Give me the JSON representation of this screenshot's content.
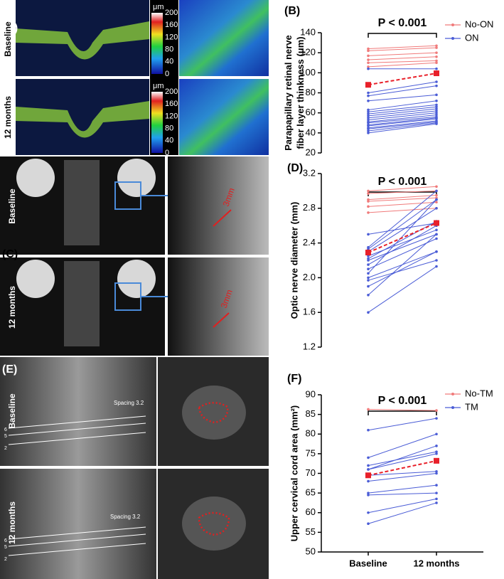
{
  "panel_a": {
    "label": "(A)",
    "rows": [
      "Baseline",
      "12 months"
    ],
    "colorbar_unit": "μm",
    "colorbar_ticks": [
      "200",
      "160",
      "120",
      "80",
      "40",
      "0"
    ]
  },
  "panel_c": {
    "label": "(C)",
    "rows": [
      "Baseline",
      "12 months"
    ],
    "measure": "3mm"
  },
  "panel_e": {
    "label": "(E)",
    "rows": [
      "Baseline",
      "12 months"
    ],
    "spacing": [
      "Spacing  3.2",
      "Spacing  3.2"
    ],
    "ruler_marks": [
      "6",
      "5",
      "2"
    ]
  },
  "chart_data": [
    {
      "type": "line",
      "label": "(B)",
      "annotation": "P < 0.001",
      "ylabel": [
        "Parapapillary retinal nerve",
        "fiber layer  thinkness (μm)"
      ],
      "ylim": [
        20,
        140
      ],
      "yticks": [
        20,
        40,
        60,
        80,
        100,
        120,
        140
      ],
      "series": [
        {
          "name": "No-ON",
          "color": "#f07a7a",
          "lines": [
            [
              124,
              127
            ],
            [
              122,
              125
            ],
            [
              117,
              120
            ],
            [
              113,
              116
            ],
            [
              110,
              112
            ],
            [
              106,
              110
            ]
          ]
        },
        {
          "name": "ON",
          "color": "#4a5cd6",
          "lines": [
            [
              104,
              104
            ],
            [
              80,
              91
            ],
            [
              77,
              87
            ],
            [
              72,
              78
            ],
            [
              63,
              72
            ],
            [
              61,
              68
            ],
            [
              59,
              66
            ],
            [
              57,
              64
            ],
            [
              55,
              62
            ],
            [
              53,
              60
            ],
            [
              51,
              58
            ],
            [
              50,
              56
            ],
            [
              48,
              55
            ],
            [
              47,
              54
            ],
            [
              45,
              52
            ],
            [
              44,
              51
            ],
            [
              42,
              50
            ],
            [
              40,
              49
            ]
          ]
        }
      ],
      "mean": {
        "values": [
          88,
          99.5
        ],
        "color": "#e8202a"
      }
    },
    {
      "type": "line",
      "label": "(D)",
      "annotation": "P < 0.001",
      "ylabel": [
        "Optic nerve diameter (mm)"
      ],
      "ylim": [
        1.2,
        3.2
      ],
      "yticks": [
        1.2,
        1.6,
        {
          "value": 2,
          "label": "2.0"
        },
        2.4,
        2.8,
        3.2
      ],
      "series": [
        {
          "color": "#f07a7a",
          "lines": [
            [
              3.0,
              3.05
            ],
            [
              2.97,
              3.0
            ],
            [
              2.9,
              2.95
            ],
            [
              2.88,
              2.92
            ],
            [
              2.82,
              2.87
            ],
            [
              2.75,
              2.8
            ]
          ]
        },
        {
          "color": "#4a5cd6",
          "lines": [
            [
              2.5,
              2.63
            ],
            [
              2.35,
              3.0
            ],
            [
              2.33,
              2.9
            ],
            [
              2.3,
              2.8
            ],
            [
              2.25,
              2.55
            ],
            [
              2.22,
              2.65
            ],
            [
              2.2,
              2.5
            ],
            [
              2.15,
              2.6
            ],
            [
              2.1,
              2.45
            ],
            [
              2.05,
              2.9
            ],
            [
              2.0,
              2.3
            ],
            [
              1.97,
              2.2
            ],
            [
              1.9,
              2.3
            ],
            [
              1.8,
              2.5
            ],
            [
              1.6,
              2.13
            ]
          ]
        }
      ],
      "mean": {
        "values": [
          2.29,
          2.63
        ],
        "color": "#e8202a"
      }
    },
    {
      "type": "line",
      "label": "(F)",
      "annotation": "P < 0.001",
      "ylabel": [
        "Upper cervical cord area (mm²)"
      ],
      "categories": [
        "Baseline",
        "12 months"
      ],
      "ylim": [
        50,
        90
      ],
      "yticks": [
        50,
        55,
        60,
        65,
        70,
        75,
        80,
        85,
        90
      ],
      "series": [
        {
          "name": "No-TM",
          "color": "#f07a7a",
          "lines": [
            [
              86.3,
              86
            ]
          ]
        },
        {
          "name": "TM",
          "color": "#4a5cd6",
          "lines": [
            [
              81,
              84
            ],
            [
              74,
              80
            ],
            [
              72,
              75.5
            ],
            [
              71,
              77
            ],
            [
              71,
              75
            ],
            [
              69.5,
              70.5
            ],
            [
              68,
              70
            ],
            [
              65,
              67
            ],
            [
              64.5,
              65
            ],
            [
              60,
              63.5
            ],
            [
              57.2,
              62.5
            ]
          ]
        }
      ],
      "mean": {
        "values": [
          69.5,
          73.2
        ],
        "color": "#e8202a"
      }
    }
  ]
}
